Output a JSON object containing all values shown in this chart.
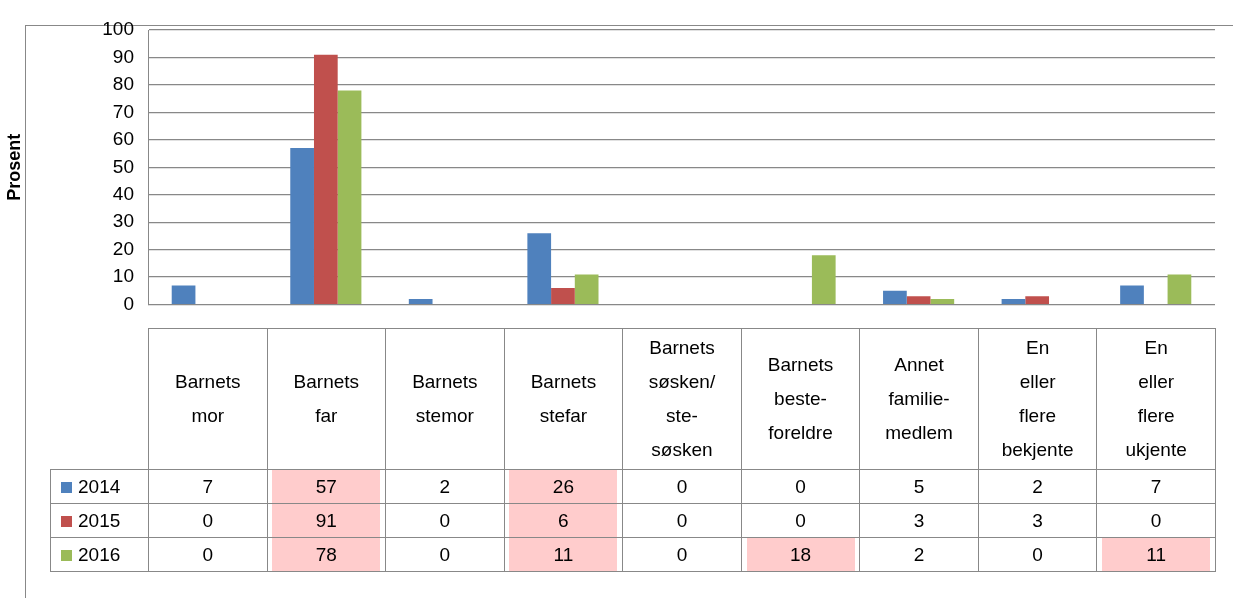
{
  "chart_data": {
    "type": "bar",
    "ylabel": "Prosent",
    "categories": [
      "Barnets mor",
      "Barnets far",
      "Barnets stemor",
      "Barnets stefar",
      "Barnets søsken/ ste- søsken",
      "Barnets beste- foreldre",
      "Annet familie- medlem",
      "En eller flere bekjente",
      "En eller flere ukjente"
    ],
    "series": [
      {
        "name": "2014",
        "color": "#4f81bd",
        "values": [
          7,
          57,
          2,
          26,
          0,
          0,
          5,
          2,
          7
        ]
      },
      {
        "name": "2015",
        "color": "#c0504d",
        "values": [
          0,
          91,
          0,
          6,
          0,
          0,
          3,
          3,
          0
        ]
      },
      {
        "name": "2016",
        "color": "#9bbb59",
        "values": [
          0,
          78,
          0,
          11,
          0,
          18,
          2,
          0,
          11
        ]
      }
    ],
    "ylim": [
      0,
      100
    ],
    "yticks": [
      0,
      10,
      20,
      30,
      40,
      50,
      60,
      70,
      80,
      90,
      100
    ],
    "grid": "y",
    "legend": "bottom",
    "data_labels": true
  }
}
